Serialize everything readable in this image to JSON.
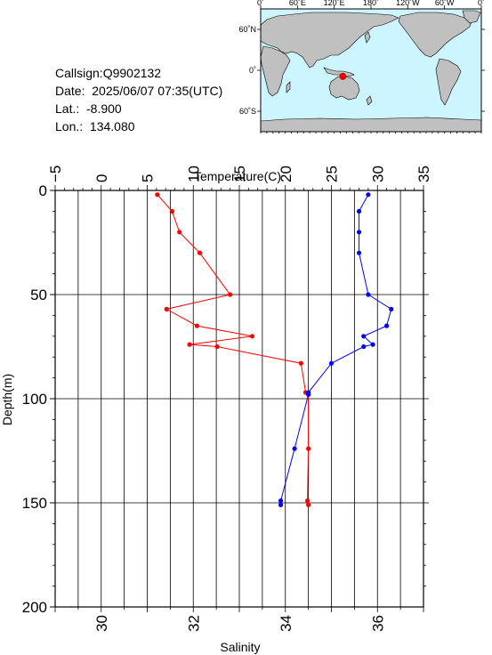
{
  "info": {
    "callsign": "Callsign:Q9902132",
    "date": "Date:  2025/06/07 07:35(UTC)",
    "lat": "Lat.:  -8.900",
    "lon": "Lon.:  134.080"
  },
  "map": {
    "top_ticks": [
      "0˚",
      "60˚E",
      "120˚E",
      "180˚",
      "120˚W",
      "60˚W",
      "0˚"
    ],
    "left_ticks": [
      "60˚N",
      "0˚",
      "60˚S"
    ],
    "station": {
      "lat": -8.9,
      "lon": 134.08
    },
    "colors": {
      "ocean": "#ccf5ff",
      "land": "#c0c0c0",
      "marker": "#ff0000"
    }
  },
  "chart_data": {
    "type": "line",
    "xlabel_top": "Temperature(C)",
    "xlabel_bottom": "Salinity",
    "ylabel": "Depth(m)",
    "ylim": [
      0,
      200
    ],
    "y_ticks": [
      "0",
      "50",
      "100",
      "150",
      "200"
    ],
    "temp_lim": [
      -5,
      35
    ],
    "temp_ticks": [
      "−5",
      "0",
      "5",
      "10",
      "15",
      "20",
      "25",
      "30",
      "35"
    ],
    "sal_lim": [
      29,
      37
    ],
    "sal_ticks": [
      "30",
      "32",
      "34",
      "36"
    ],
    "series": [
      {
        "axis": "temperature",
        "color": "#ff0000",
        "depth": [
          2,
          10,
          20,
          30,
          50,
          57,
          65,
          70,
          74,
          75,
          83,
          97,
          98,
          124,
          149,
          151
        ],
        "values": [
          6.1,
          7.7,
          8.5,
          10.7,
          14.0,
          7.1,
          10.4,
          16.4,
          9.6,
          12.6,
          21.7,
          22.2,
          22.5,
          22.5,
          22.4,
          22.5
        ]
      },
      {
        "axis": "salinity",
        "color": "#0000ff",
        "depth": [
          2,
          10,
          20,
          30,
          50,
          57,
          65,
          70,
          74,
          75,
          83,
          97,
          98,
          124,
          149,
          151
        ],
        "values": [
          35.8,
          35.6,
          35.6,
          35.6,
          35.8,
          36.3,
          36.2,
          35.7,
          35.9,
          35.7,
          35.0,
          34.5,
          34.5,
          34.2,
          33.9,
          33.9
        ]
      }
    ]
  }
}
